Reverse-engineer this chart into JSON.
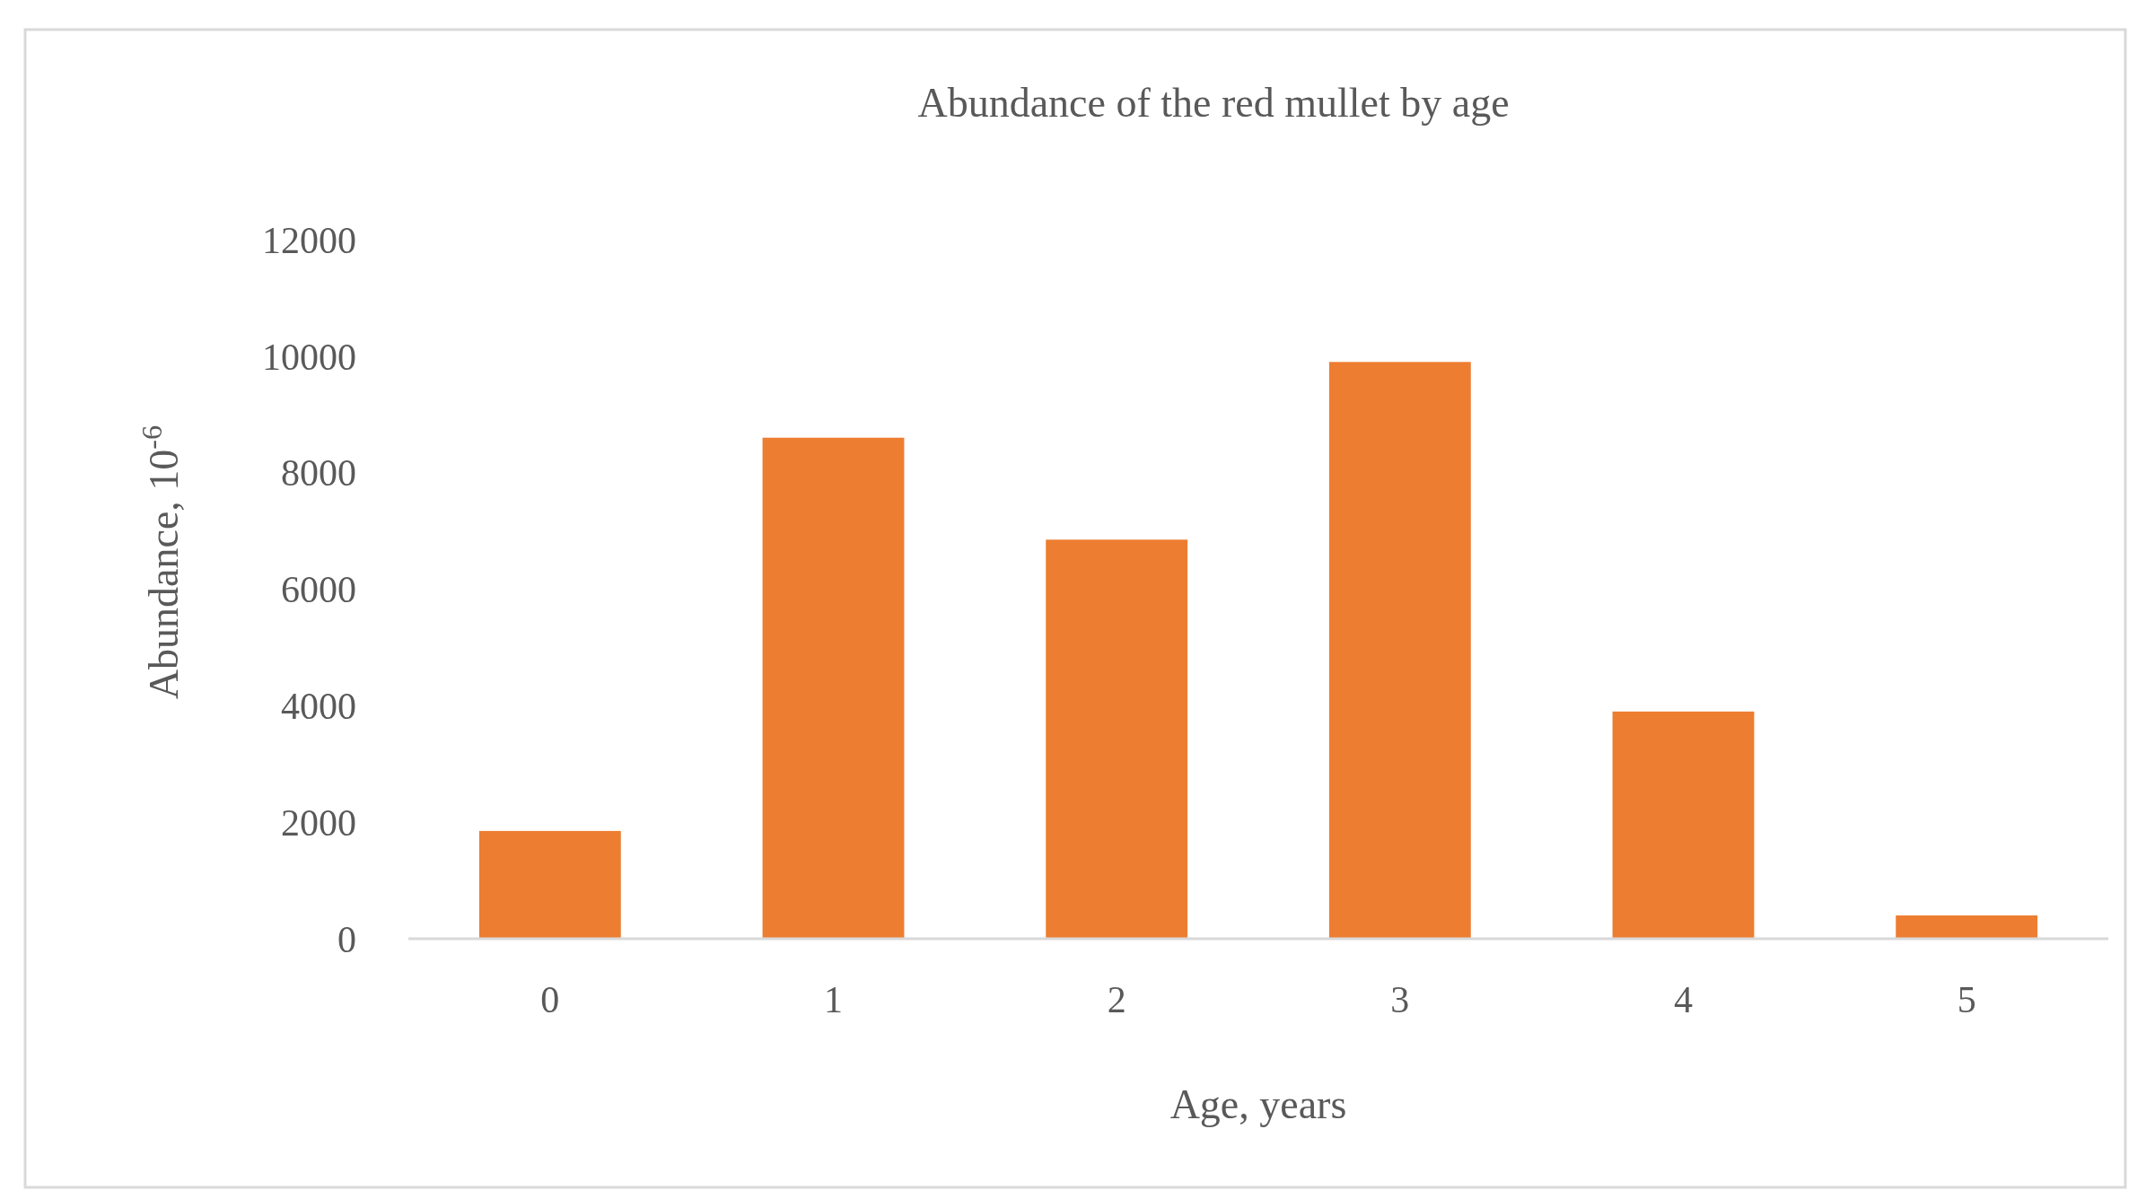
{
  "chart_data": {
    "type": "bar",
    "title": "Abundance of the red mullet by age",
    "xlabel": "Age, years",
    "ylabel": "Abundance, 10$^{-6}$",
    "categories": [
      "0",
      "1",
      "2",
      "3",
      "4",
      "5"
    ],
    "values": [
      1850,
      8600,
      6850,
      9900,
      3900,
      400
    ],
    "color": "#ed7d31",
    "ylim": [
      0,
      12000
    ],
    "yticks": [
      0,
      2000,
      4000,
      6000,
      8000,
      10000,
      12000
    ],
    "grid": false
  }
}
